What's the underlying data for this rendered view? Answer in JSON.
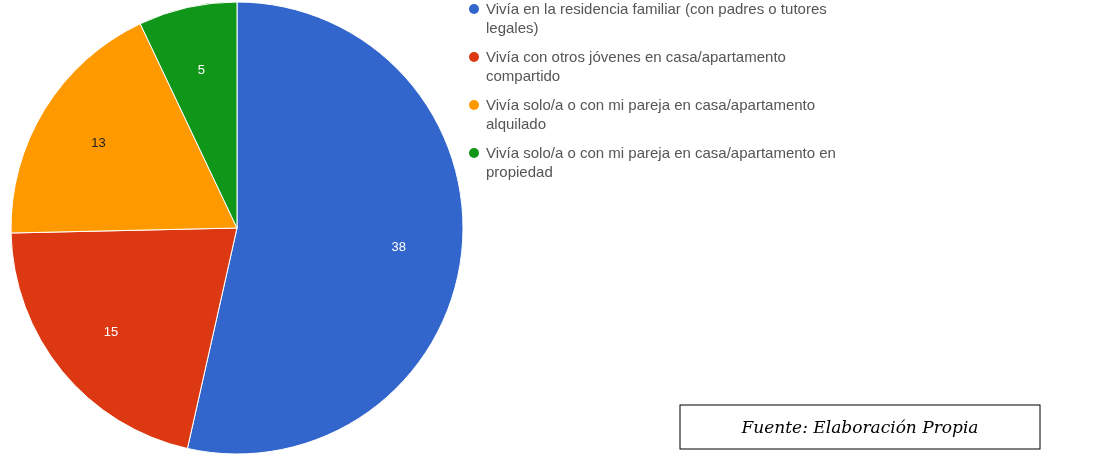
{
  "chart_data": {
    "type": "pie",
    "categories": [
      "Vivía en la residencia familiar (con padres o tutores legales)",
      "Vivía con otros jóvenes en casa/apartamento compartido",
      "Vivía solo/a o con mi pareja en casa/apartamento alquilado",
      "Vivía solo/a o con mi pareja en casa/apartamento en propiedad"
    ],
    "values": [
      38,
      15,
      13,
      5
    ],
    "colors": [
      "#3366cc",
      "#dc3912",
      "#ff9900",
      "#109618"
    ],
    "data_labels": true,
    "legend": "right",
    "annotations": [
      "Fuente: Elaboración Propia"
    ]
  }
}
